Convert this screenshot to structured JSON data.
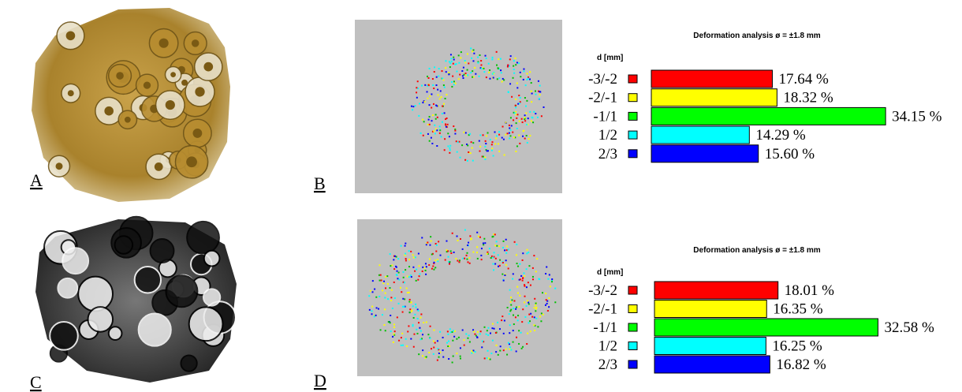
{
  "panel_labels": [
    "A",
    "B",
    "C",
    "D"
  ],
  "chart_data": [
    {
      "type": "bar",
      "orientation": "horizontal",
      "title": "Deformation analysis  ø = ±1.8 mm",
      "y_label": "d [mm]",
      "categories": [
        "-3/-2",
        "-2/-1",
        "-1/1",
        "1/2",
        "2/3"
      ],
      "values": [
        17.64,
        18.32,
        34.15,
        14.29,
        15.6
      ],
      "value_labels": [
        "17.64 %",
        "18.32 %",
        "34.15 %",
        "14.29 %",
        "15.60 %"
      ],
      "colors": [
        "#ff0000",
        "#ffff00",
        "#00ff00",
        "#00ffff",
        "#0000ff"
      ]
    },
    {
      "type": "bar",
      "orientation": "horizontal",
      "title": "Deformation analysis  ø = ±1.8 mm",
      "y_label": "d [mm]",
      "categories": [
        "-3/-2",
        "-2/-1",
        "-1/1",
        "1/2",
        "2/3"
      ],
      "values": [
        18.01,
        16.35,
        32.58,
        16.25,
        16.82
      ],
      "value_labels": [
        "18.01 %",
        "16.35 %",
        "32.58 %",
        "16.25 %",
        "16.82 %"
      ],
      "colors": [
        "#ff0000",
        "#ffff00",
        "#00ff00",
        "#00ffff",
        "#0000ff"
      ]
    }
  ]
}
